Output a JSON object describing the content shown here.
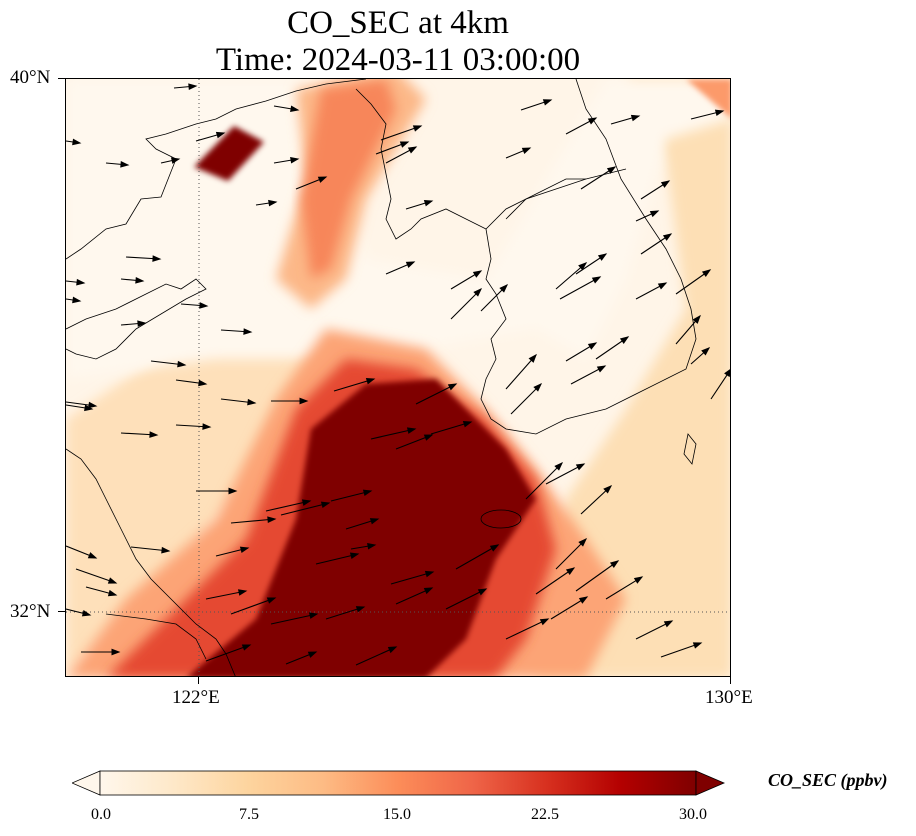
{
  "title": {
    "line1": "CO_SEC at 4km",
    "line2": "Time: 2024-03-11 03:00:00"
  },
  "map": {
    "variable": "CO_SEC",
    "level": "4km",
    "time": "2024-03-11 03:00:00",
    "lon_range": [
      120,
      130
    ],
    "lat_range": [
      31,
      40
    ],
    "lat_ticks": [
      "40°N",
      "32°N"
    ],
    "lon_ticks": [
      "122°E",
      "130°E"
    ],
    "gridlines": {
      "lon": 122,
      "lat": 32
    },
    "colormap": "OrRd",
    "overlay": "wind vectors",
    "plume_regions": [
      {
        "name": "main plume core",
        "value_ppbv": 30,
        "approx_lon": [
          122,
          127
        ],
        "approx_lat": [
          31,
          35
        ]
      },
      {
        "name": "northern patch",
        "value_ppbv": 30,
        "approx_lon": [
          122,
          123
        ],
        "approx_lat": [
          38.5,
          39.2
        ]
      },
      {
        "name": "northern band",
        "value_ppbv": 20,
        "approx_lon": [
          123.5,
          125.5
        ],
        "approx_lat": [
          37,
          40
        ]
      }
    ]
  },
  "colorbar": {
    "title": "CO_SEC (ppbv)",
    "min": 0.0,
    "max": 30.0,
    "extend": "both",
    "colors": [
      "#fff7ec",
      "#fee8c8",
      "#fdd49e",
      "#fdbb84",
      "#fc8d59",
      "#ef6548",
      "#d7301f",
      "#b30000",
      "#7f0000"
    ],
    "ticks": [
      "0.0",
      "7.5",
      "15.0",
      "22.5",
      "30.0"
    ]
  }
}
